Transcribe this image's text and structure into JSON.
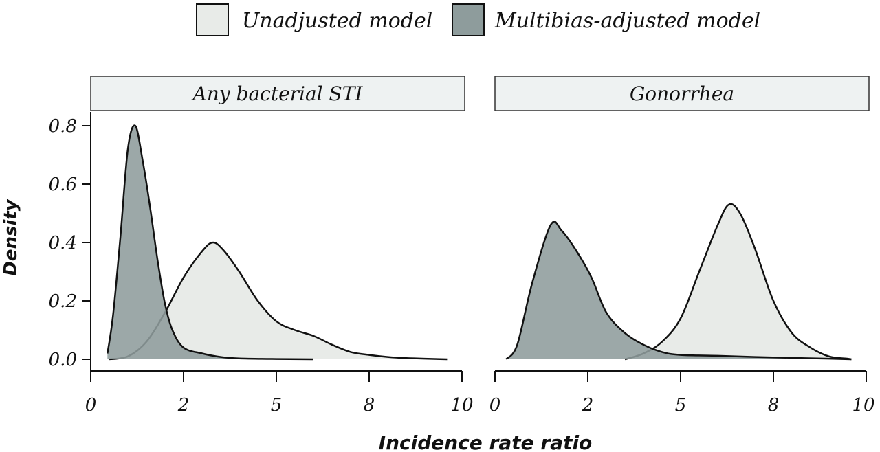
{
  "chart_data": [
    {
      "type": "area",
      "panel_title": "Any bacterial STI",
      "xlabel": "Incidence rate ratio",
      "ylabel": "Density",
      "xlim": [
        0,
        10
      ],
      "ylim": [
        0,
        0.8
      ],
      "x_ticks": [
        "0",
        "2",
        "5",
        "8",
        "10"
      ],
      "y_ticks": [
        "0.0",
        "0.2",
        "0.4",
        "0.6",
        "0.8"
      ],
      "legend_position": "top",
      "series": [
        {
          "name": "Unadjusted model",
          "color": "#e8ebe8",
          "x": [
            0.5,
            1.0,
            1.5,
            2.0,
            2.5,
            3.0,
            3.3,
            3.6,
            4.0,
            4.5,
            5.0,
            5.5,
            6.0,
            6.5,
            7.0,
            7.5,
            8.0,
            8.5,
            9.0,
            9.6
          ],
          "y": [
            0.0,
            0.01,
            0.06,
            0.16,
            0.28,
            0.37,
            0.4,
            0.37,
            0.3,
            0.2,
            0.13,
            0.1,
            0.08,
            0.05,
            0.025,
            0.015,
            0.008,
            0.004,
            0.002,
            0.0
          ]
        },
        {
          "name": "Multibias-adjusted model",
          "color": "#8e9c9c",
          "x": [
            0.45,
            0.6,
            0.8,
            1.0,
            1.2,
            1.4,
            1.6,
            1.8,
            2.0,
            2.2,
            2.5,
            3.0,
            3.5,
            4.0,
            5.0,
            6.0
          ],
          "y": [
            0.02,
            0.15,
            0.42,
            0.72,
            0.8,
            0.68,
            0.52,
            0.34,
            0.19,
            0.1,
            0.04,
            0.02,
            0.008,
            0.003,
            0.001,
            0.0
          ]
        }
      ]
    },
    {
      "type": "area",
      "panel_title": "Gonorrhea",
      "xlabel": "Incidence rate ratio",
      "ylabel": "Density",
      "xlim": [
        0,
        10
      ],
      "ylim": [
        0,
        0.8
      ],
      "x_ticks": [
        "0",
        "2",
        "5",
        "8",
        "10"
      ],
      "y_ticks": [
        "0.0",
        "0.2",
        "0.4",
        "0.6",
        "0.8"
      ],
      "legend_position": "top",
      "series": [
        {
          "name": "Unadjusted model",
          "color": "#e8ebe8",
          "x": [
            3.5,
            4.0,
            4.5,
            5.0,
            5.5,
            6.0,
            6.3,
            6.6,
            7.0,
            7.5,
            8.0,
            8.5,
            9.0,
            9.5,
            9.6
          ],
          "y": [
            0.0,
            0.02,
            0.06,
            0.14,
            0.3,
            0.46,
            0.53,
            0.5,
            0.38,
            0.2,
            0.09,
            0.04,
            0.01,
            0.002,
            0.0
          ]
        },
        {
          "name": "Multibias-adjusted model",
          "color": "#8e9c9c",
          "x": [
            0.3,
            0.6,
            1.0,
            1.5,
            1.8,
            2.2,
            2.6,
            3.0,
            3.5,
            4.0,
            4.5,
            5.0,
            6.0,
            7.0,
            8.0,
            9.0,
            9.6
          ],
          "y": [
            0.0,
            0.05,
            0.26,
            0.46,
            0.44,
            0.37,
            0.28,
            0.16,
            0.09,
            0.05,
            0.025,
            0.015,
            0.012,
            0.008,
            0.005,
            0.002,
            0.0
          ]
        }
      ]
    }
  ]
}
